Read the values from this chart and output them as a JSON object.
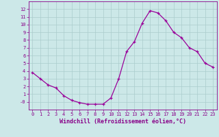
{
  "x": [
    0,
    1,
    2,
    3,
    4,
    5,
    6,
    7,
    8,
    9,
    10,
    11,
    12,
    13,
    14,
    15,
    16,
    17,
    18,
    19,
    20,
    21,
    22,
    23
  ],
  "y": [
    3.8,
    3.0,
    2.2,
    1.8,
    0.8,
    0.2,
    -0.1,
    -0.3,
    -0.3,
    -0.3,
    0.5,
    3.0,
    6.5,
    7.8,
    10.2,
    11.8,
    11.5,
    10.5,
    9.0,
    8.3,
    7.0,
    6.5,
    5.0,
    4.5
  ],
  "line_color": "#990099",
  "marker": "+",
  "marker_size": 3.5,
  "linewidth": 0.9,
  "bg_color": "#cce8e8",
  "grid_color": "#aacccc",
  "xlabel": "Windchill (Refroidissement éolien,°C)",
  "xlim": [
    -0.5,
    23.5
  ],
  "ylim": [
    -1,
    13
  ],
  "yticks": [
    0,
    1,
    2,
    3,
    4,
    5,
    6,
    7,
    8,
    9,
    10,
    11,
    12
  ],
  "ytick_labels": [
    "-0",
    "1",
    "2",
    "3",
    "4",
    "5",
    "6",
    "7",
    "8",
    "9",
    "10",
    "11",
    "12"
  ],
  "xticks": [
    0,
    1,
    2,
    3,
    4,
    5,
    6,
    7,
    8,
    9,
    10,
    11,
    12,
    13,
    14,
    15,
    16,
    17,
    18,
    19,
    20,
    21,
    22,
    23
  ],
  "tick_color": "#880088",
  "tick_fontsize": 5.0,
  "xlabel_fontsize": 6.0,
  "axis_color": "#880088"
}
